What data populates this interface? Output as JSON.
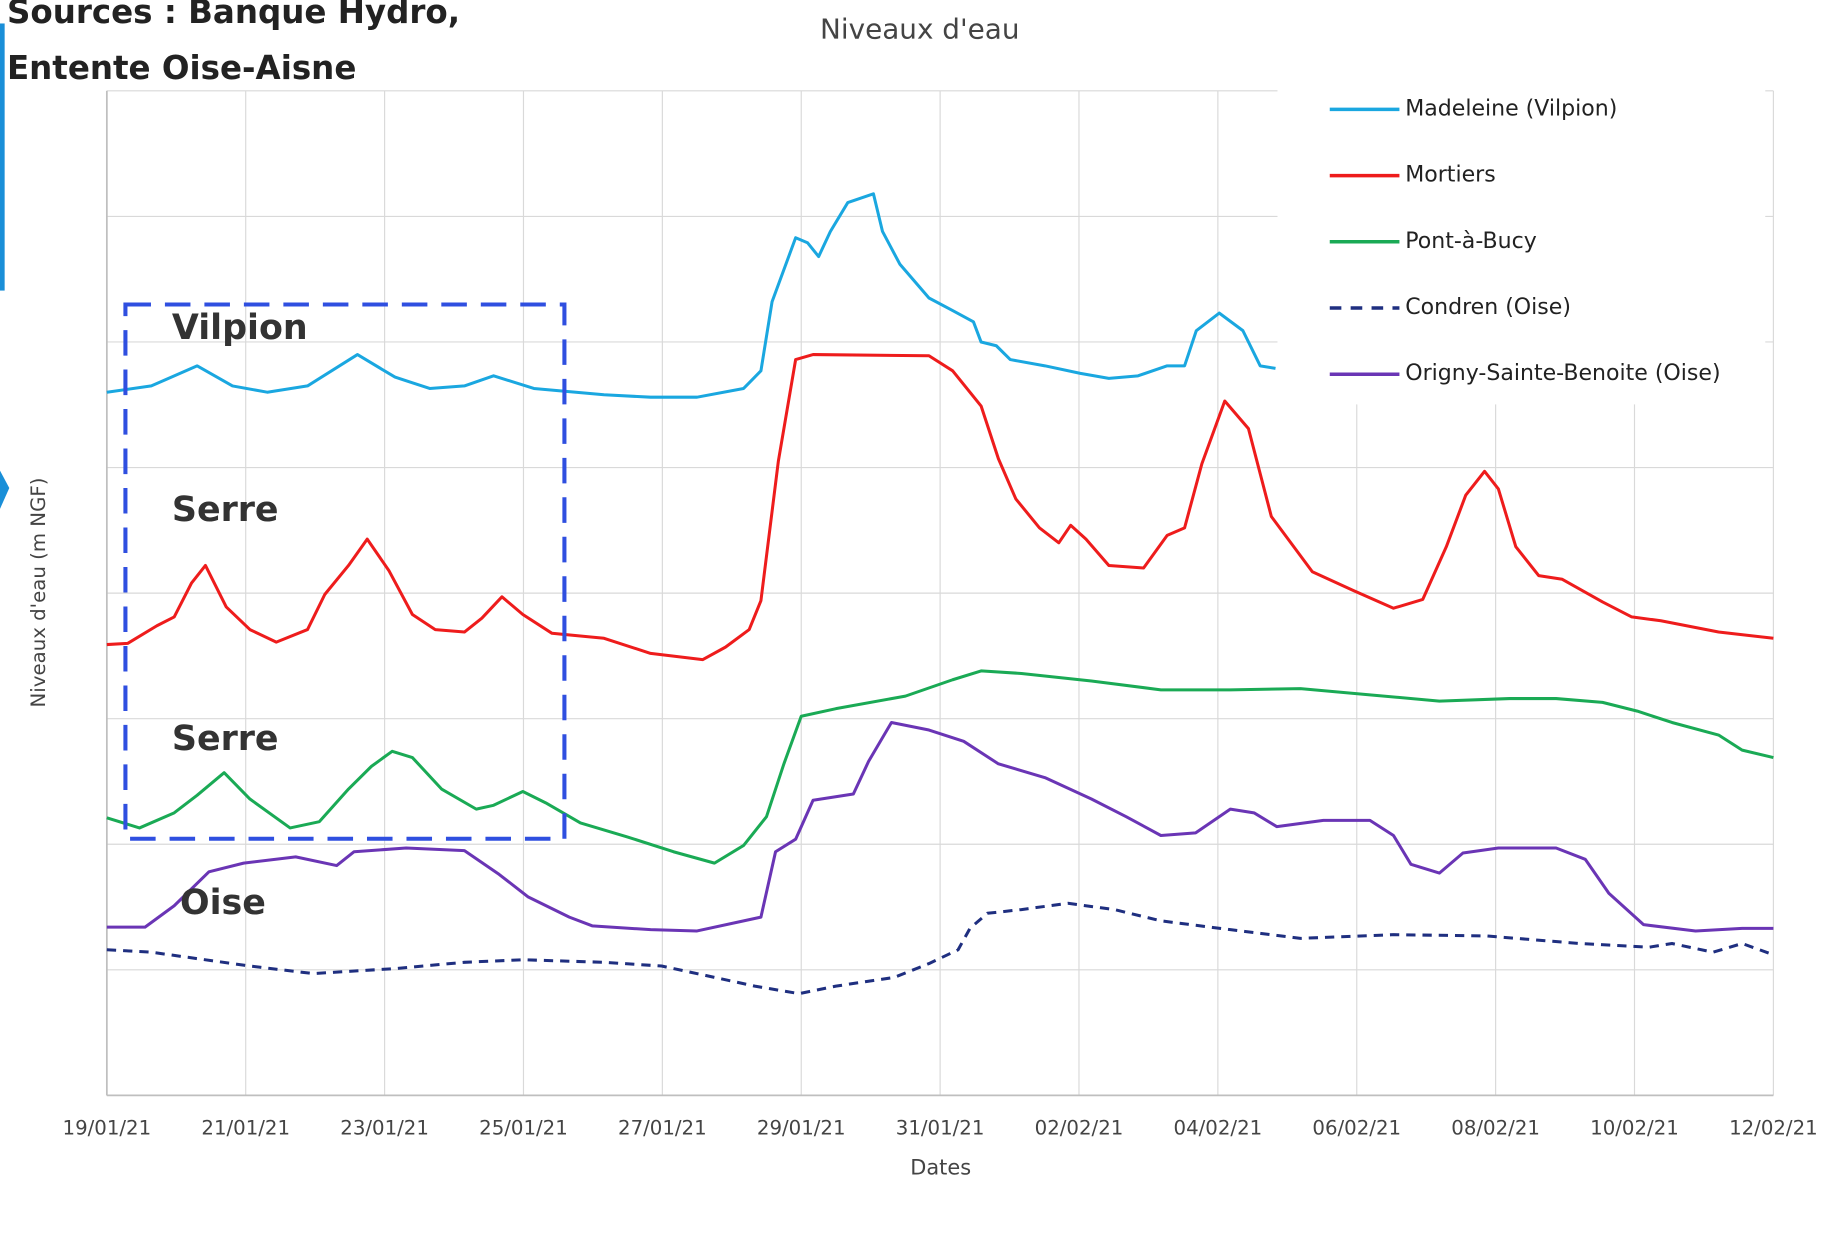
{
  "chart_data": {
    "type": "line",
    "title": "Niveaux d'eau",
    "source": [
      "Sources : Banque Hydro,",
      "Entente Oise-Aisne"
    ],
    "x_label": "Dates",
    "y_label": "Niveaux d'eau (m NGF)",
    "annotations": [
      "Vilpion",
      "Serre",
      "Serre",
      "Oise"
    ],
    "xlim": [
      0,
      24
    ],
    "xticks": [
      {
        "value": 0,
        "label": "19/01/21"
      },
      {
        "value": 2,
        "label": "21/01/21"
      },
      {
        "value": 4,
        "label": "23/01/21"
      },
      {
        "value": 6,
        "label": "25/01/21"
      },
      {
        "value": 8,
        "label": "27/01/21"
      },
      {
        "value": 10,
        "label": "29/01/21"
      },
      {
        "value": 12,
        "label": "31/01/21"
      },
      {
        "value": 14,
        "label": "02/02/21"
      },
      {
        "value": 16,
        "label": "04/02/21"
      },
      {
        "value": 18,
        "label": "06/02/21"
      },
      {
        "value": 20,
        "label": "08/02/21"
      },
      {
        "value": 22,
        "label": "10/02/21"
      },
      {
        "value": 24,
        "label": "12/02/21"
      }
    ],
    "ylim": [
      0,
      8
    ],
    "ygrid": [
      0,
      1,
      2,
      3,
      4,
      5,
      6,
      7,
      8
    ],
    "grid": true,
    "legend": "upper right",
    "series": [
      {
        "name": "Madeleine (Vilpion)",
        "color": "#1aa7e0",
        "style": "solid",
        "x": [
          0,
          0.64,
          1.3,
          1.81,
          2.31,
          2.89,
          3.61,
          4.15,
          4.65,
          5.15,
          5.57,
          6.15,
          7.16,
          7.83,
          8.5,
          9.17,
          9.42,
          9.58,
          9.92,
          10.09,
          10.25,
          10.42,
          10.67,
          11.04,
          11.17,
          11.42,
          11.84,
          12.18,
          12.48,
          12.59,
          12.81,
          13.01,
          13.51,
          14.02,
          14.43,
          14.85,
          15.27,
          15.52,
          15.69,
          16.02,
          16.36,
          16.61,
          16.83
        ],
        "values": [
          5.6,
          5.65,
          5.81,
          5.65,
          5.6,
          5.65,
          5.9,
          5.72,
          5.63,
          5.65,
          5.73,
          5.63,
          5.58,
          5.56,
          5.56,
          5.63,
          5.77,
          6.32,
          6.83,
          6.79,
          6.68,
          6.88,
          7.11,
          7.18,
          6.88,
          6.62,
          6.35,
          6.25,
          6.16,
          6.0,
          5.97,
          5.86,
          5.81,
          5.75,
          5.71,
          5.73,
          5.81,
          5.81,
          6.09,
          6.23,
          6.09,
          5.81,
          5.79
        ]
      },
      {
        "name": "Mortiers",
        "color": "#ee1c1c",
        "style": "solid",
        "x": [
          0,
          0.3,
          0.72,
          0.97,
          1.22,
          1.42,
          1.72,
          2.06,
          2.44,
          2.89,
          3.14,
          3.48,
          3.75,
          4.06,
          4.4,
          4.73,
          5.15,
          5.4,
          5.69,
          5.99,
          6.41,
          7.16,
          7.83,
          8.58,
          8.91,
          9.25,
          9.42,
          9.67,
          9.92,
          10.17,
          11.84,
          12.18,
          12.59,
          12.84,
          13.09,
          13.43,
          13.71,
          13.88,
          14.1,
          14.43,
          14.93,
          15.27,
          15.52,
          15.77,
          16.1,
          16.44,
          16.77,
          17.36,
          17.95,
          18.53,
          18.95,
          19.29,
          19.57,
          19.84,
          20.04,
          20.29,
          20.62,
          20.96,
          21.54,
          21.96,
          22.38,
          23.21,
          24
        ],
        "values": [
          3.59,
          3.6,
          3.74,
          3.81,
          4.08,
          4.22,
          3.89,
          3.71,
          3.61,
          3.71,
          3.99,
          4.22,
          4.43,
          4.18,
          3.83,
          3.71,
          3.69,
          3.8,
          3.97,
          3.83,
          3.68,
          3.64,
          3.52,
          3.47,
          3.57,
          3.71,
          3.94,
          5.05,
          5.86,
          5.9,
          5.89,
          5.77,
          5.49,
          5.07,
          4.75,
          4.52,
          4.4,
          4.54,
          4.43,
          4.22,
          4.2,
          4.46,
          4.52,
          5.03,
          5.53,
          5.31,
          4.61,
          4.17,
          4.02,
          3.88,
          3.95,
          4.37,
          4.78,
          4.97,
          4.83,
          4.37,
          4.14,
          4.11,
          3.93,
          3.81,
          3.78,
          3.69,
          3.64
        ]
      },
      {
        "name": "Pont-à-Bucy",
        "color": "#1aaa55",
        "style": "solid",
        "x": [
          0,
          0.47,
          0.97,
          1.3,
          1.69,
          2.06,
          2.64,
          3.06,
          3.48,
          3.81,
          4.11,
          4.4,
          4.82,
          5.32,
          5.57,
          5.99,
          6.32,
          6.82,
          7.49,
          8.16,
          8.75,
          9.17,
          9.5,
          9.75,
          10,
          10.5,
          11.5,
          12.18,
          12.59,
          13.17,
          14.18,
          15.18,
          16.18,
          17.19,
          18.19,
          19.19,
          20.2,
          20.87,
          21.54,
          22.04,
          22.54,
          23.21,
          23.55,
          24
        ],
        "values": [
          2.21,
          2.13,
          2.25,
          2.39,
          2.57,
          2.36,
          2.13,
          2.18,
          2.44,
          2.62,
          2.74,
          2.69,
          2.44,
          2.28,
          2.31,
          2.42,
          2.33,
          2.17,
          2.06,
          1.94,
          1.85,
          1.99,
          2.22,
          2.64,
          3.02,
          3.08,
          3.18,
          3.31,
          3.38,
          3.36,
          3.3,
          3.23,
          3.23,
          3.24,
          3.19,
          3.14,
          3.16,
          3.16,
          3.13,
          3.06,
          2.97,
          2.87,
          2.75,
          2.69
        ]
      },
      {
        "name": "Condren (Oise)",
        "color": "#1f2f80",
        "style": "dashed",
        "x": [
          0,
          0.64,
          2.06,
          2.97,
          4.15,
          5.15,
          5.99,
          7.16,
          7.99,
          8.83,
          9.33,
          9.97,
          10.5,
          11.34,
          11.84,
          12.26,
          12.43,
          12.68,
          13.17,
          13.84,
          14.51,
          15.18,
          16.18,
          17.19,
          18.53,
          19.87,
          21.21,
          22.21,
          22.54,
          23.13,
          23.55,
          24
        ],
        "values": [
          1.16,
          1.14,
          1.03,
          0.97,
          1.01,
          1.06,
          1.08,
          1.06,
          1.03,
          0.93,
          0.87,
          0.81,
          0.87,
          0.94,
          1.05,
          1.16,
          1.33,
          1.45,
          1.48,
          1.53,
          1.48,
          1.39,
          1.32,
          1.25,
          1.28,
          1.27,
          1.21,
          1.18,
          1.21,
          1.14,
          1.21,
          1.12
        ]
      },
      {
        "name": "Origny-Sainte-Benoite (Oise)",
        "color": "#6a35b5",
        "style": "solid",
        "x": [
          0,
          0.55,
          0.97,
          1.47,
          1.97,
          2.72,
          3.31,
          3.56,
          4.31,
          5.15,
          5.65,
          6.07,
          6.66,
          6.99,
          7.83,
          8.5,
          9.17,
          9.42,
          9.63,
          9.92,
          10.17,
          10.75,
          10.97,
          11.3,
          11.84,
          12.34,
          12.84,
          13.51,
          14.18,
          14.68,
          15.18,
          15.68,
          16.18,
          16.52,
          16.85,
          17.52,
          18.19,
          18.53,
          18.78,
          19.19,
          19.53,
          20.04,
          20.87,
          21.29,
          21.63,
          22.13,
          22.88,
          23.55,
          24
        ],
        "values": [
          1.34,
          1.34,
          1.51,
          1.78,
          1.85,
          1.9,
          1.83,
          1.94,
          1.97,
          1.95,
          1.76,
          1.58,
          1.42,
          1.35,
          1.32,
          1.31,
          1.39,
          1.42,
          1.94,
          2.04,
          2.35,
          2.4,
          2.66,
          2.97,
          2.91,
          2.82,
          2.64,
          2.53,
          2.36,
          2.22,
          2.07,
          2.09,
          2.28,
          2.25,
          2.14,
          2.19,
          2.19,
          2.07,
          1.84,
          1.77,
          1.93,
          1.97,
          1.97,
          1.88,
          1.61,
          1.36,
          1.31,
          1.33,
          1.33
        ]
      }
    ]
  }
}
